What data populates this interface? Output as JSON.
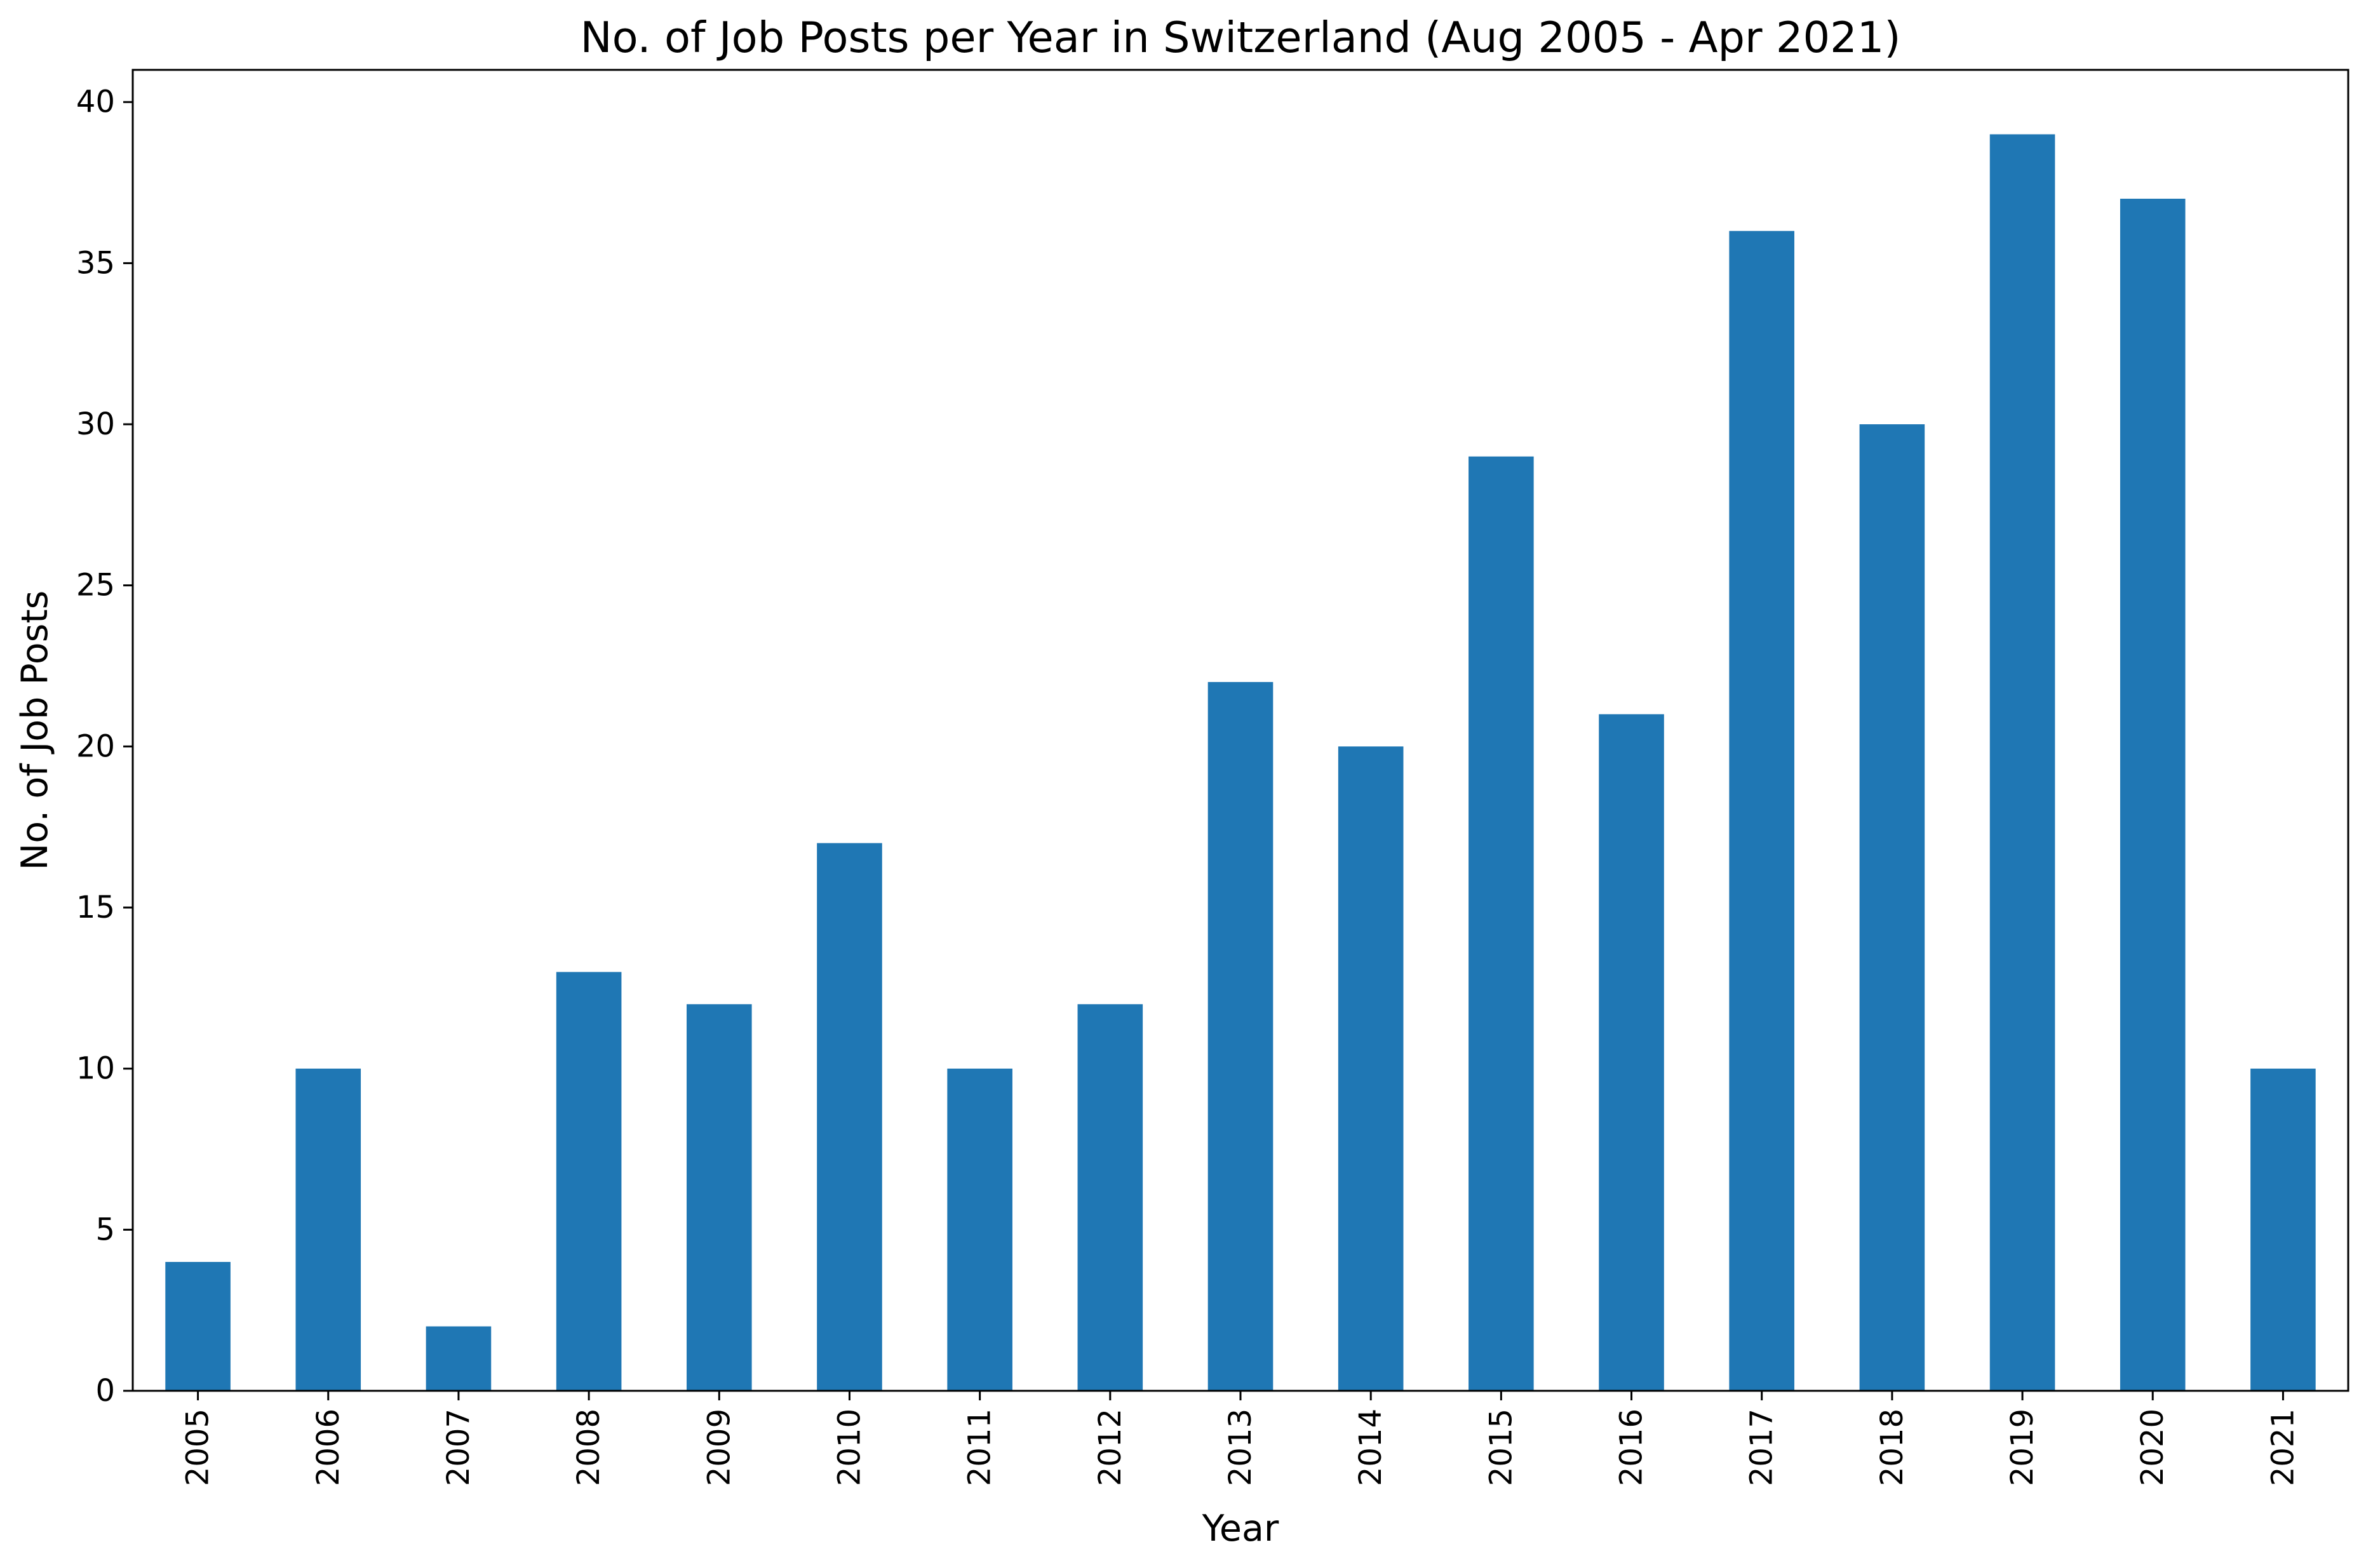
{
  "chart_data": {
    "type": "bar",
    "title": "No. of Job Posts per Year in Switzerland (Aug 2005 - Apr 2021)",
    "xlabel": "Year",
    "ylabel": "No. of Job Posts",
    "categories": [
      "2005",
      "2006",
      "2007",
      "2008",
      "2009",
      "2010",
      "2011",
      "2012",
      "2013",
      "2014",
      "2015",
      "2016",
      "2017",
      "2018",
      "2019",
      "2020",
      "2021"
    ],
    "values": [
      4,
      10,
      2,
      13,
      12,
      17,
      10,
      12,
      22,
      20,
      29,
      21,
      36,
      30,
      39,
      37,
      10
    ],
    "ylim": [
      0,
      41
    ],
    "yticks": [
      0,
      5,
      10,
      15,
      20,
      25,
      30,
      35,
      40
    ],
    "bar_color": "#1f77b4",
    "grid": false,
    "legend": "none"
  }
}
